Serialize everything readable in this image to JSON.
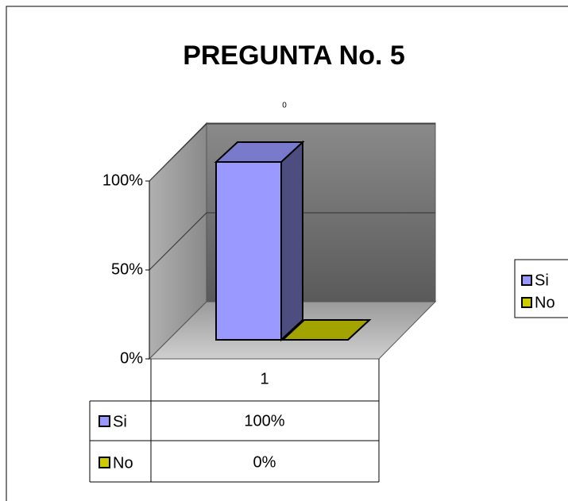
{
  "chart_data": {
    "type": "bar3d",
    "title": "PREGUNTA No. 5",
    "annotations": [
      "0"
    ],
    "categories": [
      "1"
    ],
    "series": [
      {
        "name": "Si",
        "color": "#9999ff",
        "values": [
          100
        ],
        "value_labels": [
          "100%"
        ]
      },
      {
        "name": "No",
        "color": "#cccc00",
        "values": [
          0
        ],
        "value_labels": [
          "0%"
        ]
      }
    ],
    "ylim": [
      0,
      100
    ],
    "yticks": [
      {
        "value": 0,
        "label": "0%"
      },
      {
        "value": 50,
        "label": "50%"
      },
      {
        "value": 100,
        "label": "100%"
      }
    ],
    "grid": true,
    "legend": "right",
    "data_table": true
  }
}
